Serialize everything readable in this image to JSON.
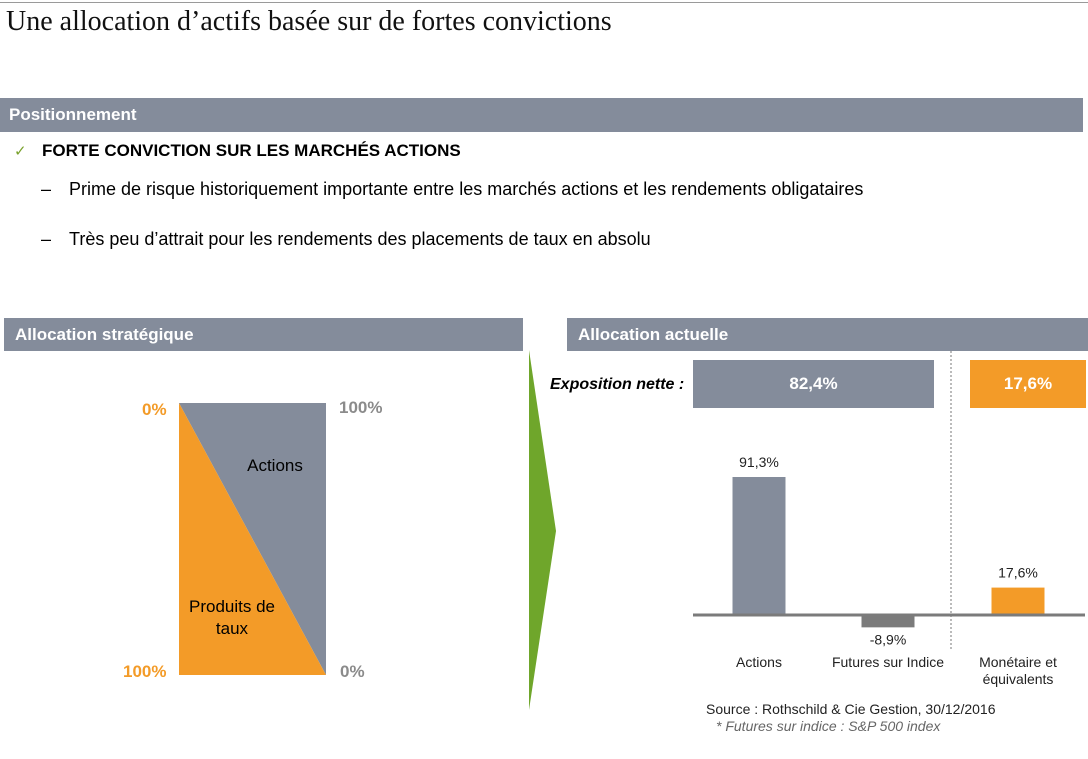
{
  "page": {
    "title": "Une allocation d’actifs basée sur de fortes convictions"
  },
  "positionnement": {
    "header": "Positionnement",
    "check_icon": "check-icon",
    "conviction": "FORTE CONVICTION SUR LES MARCHÉS ACTIONS",
    "bullets": [
      "Prime de risque historiquement importante entre les marchés actions et les rendements obligataires",
      "Très peu d’attrait pour les rendements des placements de taux en absolu"
    ]
  },
  "strategique": {
    "header": "Allocation stratégique",
    "top_left": "0%",
    "top_right": "100%",
    "bottom_left": "100%",
    "bottom_right": "0%",
    "actions_label": "Actions",
    "produits_label": "Produits de taux"
  },
  "actuelle": {
    "header": "Allocation actuelle",
    "exposition_label": "Exposition nette :",
    "expo_actions": "82,4%",
    "expo_monetaire": "17,6%"
  },
  "colors": {
    "grey": "#848c9b",
    "orange": "#f39b28",
    "green_arrow": "#6fa62b",
    "futures_bar": "#7b7b7b"
  },
  "chart_data": [
    {
      "type": "area",
      "title": "Allocation stratégique",
      "series": [
        {
          "name": "Produits de taux",
          "values": [
            100,
            0
          ]
        },
        {
          "name": "Actions",
          "values": [
            0,
            100
          ]
        }
      ],
      "x": [
        "0%",
        "100%"
      ]
    },
    {
      "type": "bar",
      "title": "Allocation actuelle",
      "categories": [
        "Actions",
        "Futures sur Indice",
        "Monétaire et équivalents"
      ],
      "values": [
        91.3,
        -8.9,
        17.6
      ],
      "value_labels": [
        "91,3%",
        "-8,9%",
        "17,6%"
      ],
      "ylim": [
        -10,
        100
      ],
      "source": "Source : Rothschild & Cie Gestion, 30/12/2016",
      "note": "* Futures sur indice : S&P 500 index"
    }
  ]
}
